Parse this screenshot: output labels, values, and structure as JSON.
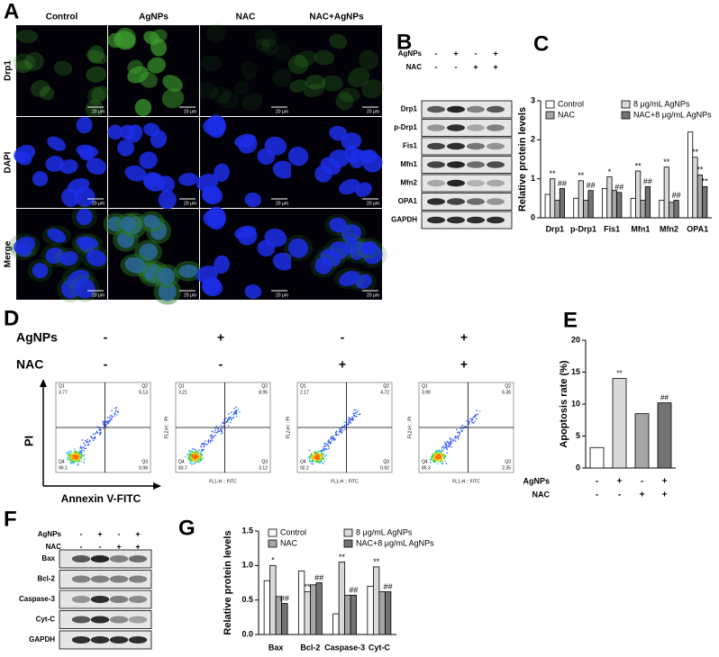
{
  "panel_a": {
    "label": "A",
    "columns": [
      "Control",
      "AgNPs",
      "NAC",
      "NAC+AgNPs"
    ],
    "rows": [
      "Drp1",
      "DAPI",
      "Merge"
    ],
    "scale_bar": "20 μm"
  },
  "panel_b": {
    "label": "B",
    "treatments": [
      {
        "name": "AgNPs",
        "signs": [
          "-",
          "+",
          "-",
          "+"
        ]
      },
      {
        "name": "NAC",
        "signs": [
          "-",
          "-",
          "+",
          "+"
        ]
      }
    ],
    "proteins": [
      "Drp1",
      "p-Drp1",
      "Fis1",
      "Mfn1",
      "Mfn2",
      "OPA1",
      "GAPDH"
    ]
  },
  "panel_d": {
    "label": "D",
    "treatments": [
      {
        "name": "AgNPs",
        "signs": [
          "-",
          "+",
          "-",
          "+"
        ]
      },
      {
        "name": "NAC",
        "signs": [
          "-",
          "-",
          "+",
          "+"
        ]
      }
    ],
    "y_label": "PI",
    "x_label": "Annexin V-FITC",
    "x_channel": "FL1-H :: FITC",
    "y_channel": "FL2-H :: PI",
    "plots": [
      {
        "quadrants": [
          {
            "name": "Q1",
            "value": 3.77
          },
          {
            "name": "Q2",
            "value": 5.13
          },
          {
            "name": "Q3",
            "value": 0.98
          },
          {
            "name": "Q4",
            "value": 90.1
          }
        ]
      },
      {
        "quadrants": [
          {
            "name": "Q1",
            "value": 3.21
          },
          {
            "name": "Q2",
            "value": 8.95
          },
          {
            "name": "Q3",
            "value": 3.12
          },
          {
            "name": "Q4",
            "value": 83.7
          }
        ]
      },
      {
        "quadrants": [
          {
            "name": "Q1",
            "value": 2.17
          },
          {
            "name": "Q2",
            "value": 4.72
          },
          {
            "name": "Q3",
            "value": 0.92
          },
          {
            "name": "Q4",
            "value": 92.2
          }
        ]
      },
      {
        "quadrants": [
          {
            "name": "Q1",
            "value": 3.99
          },
          {
            "name": "Q2",
            "value": 6.36
          },
          {
            "name": "Q3",
            "value": 2.35
          },
          {
            "name": "Q4",
            "value": 85.3
          }
        ]
      }
    ]
  },
  "panel_f": {
    "label": "F",
    "treatments": [
      {
        "name": "AgNPs",
        "signs": [
          "-",
          "+",
          "-",
          "+"
        ]
      },
      {
        "name": "NAC",
        "signs": [
          "-",
          "-",
          "+",
          "+"
        ]
      }
    ],
    "proteins": [
      "Bax",
      "Bcl-2",
      "Caspase-3",
      "Cyt-C",
      "GAPDH"
    ]
  },
  "chart_data": [
    {
      "type": "bar",
      "panel_label": "C",
      "y_label": "Relative protein levels",
      "categories": [
        "Drp1",
        "p-Drp1",
        "Fis1",
        "Mfn1",
        "Mfn2",
        "OPA1"
      ],
      "ylim": [
        0,
        3
      ],
      "yticks": [
        0,
        1,
        2,
        3
      ],
      "series": [
        {
          "name": "Control",
          "color": "#ffffff",
          "values": [
            0.6,
            0.5,
            0.75,
            0.5,
            0.45,
            2.2
          ],
          "significance": [
            null,
            null,
            null,
            null,
            null,
            null
          ]
        },
        {
          "name": "8 μg/mL AgNPs",
          "color": "#d9d9d9",
          "values": [
            1.0,
            0.95,
            1.05,
            1.2,
            1.3,
            1.55
          ],
          "significance": [
            "**",
            "**",
            "*",
            "**",
            "**",
            "**"
          ]
        },
        {
          "name": "NAC",
          "color": "#a6a6a6",
          "values": [
            0.45,
            0.45,
            0.7,
            0.45,
            0.4,
            1.1
          ],
          "significance": [
            null,
            null,
            null,
            null,
            null,
            "**"
          ]
        },
        {
          "name": "NAC+8 μg/mL AgNPs",
          "color": "#737373",
          "values": [
            0.75,
            0.7,
            0.65,
            0.8,
            0.45,
            0.8
          ],
          "significance": [
            "##",
            "##",
            "##",
            "##",
            "##",
            "**"
          ]
        }
      ]
    },
    {
      "type": "bar",
      "panel_label": "E",
      "y_label": "Apoptosis rate (%)",
      "values": [
        3.2,
        14.0,
        8.5,
        10.2
      ],
      "colors": [
        "#ffffff",
        "#d9d9d9",
        "#a6a6a6",
        "#737373"
      ],
      "significance": [
        null,
        "**",
        null,
        "##"
      ],
      "ylim": [
        0,
        20
      ],
      "yticks": [
        0,
        5,
        10,
        15,
        20
      ],
      "treatments": [
        {
          "name": "AgNPs",
          "signs": [
            "-",
            "+",
            "-",
            "+"
          ]
        },
        {
          "name": "NAC",
          "signs": [
            "-",
            "-",
            "+",
            "+"
          ]
        }
      ]
    },
    {
      "type": "bar",
      "panel_label": "G",
      "y_label": "Relative protein levels",
      "categories": [
        "Bax",
        "Bcl-2",
        "Caspase-3",
        "Cyt-C"
      ],
      "ylim": [
        0,
        1.5
      ],
      "yticks": [
        {
          "value": 0,
          "label": "0.0"
        },
        0.5,
        {
          "value": 1,
          "label": "1.0"
        },
        1.5
      ],
      "series": [
        {
          "name": "Control",
          "color": "#ffffff",
          "values": [
            0.78,
            0.92,
            0.3,
            0.7
          ],
          "significance": [
            null,
            null,
            null,
            null
          ]
        },
        {
          "name": "8 μg/mL AgNPs",
          "color": "#d9d9d9",
          "values": [
            1.0,
            0.62,
            1.05,
            0.98
          ],
          "significance": [
            "*",
            "**",
            "**",
            "**"
          ]
        },
        {
          "name": "NAC",
          "color": "#a6a6a6",
          "values": [
            0.55,
            0.72,
            0.57,
            0.62
          ],
          "significance": [
            null,
            null,
            null,
            null
          ]
        },
        {
          "name": "NAC+8 μg/mL AgNPs",
          "color": "#737373",
          "values": [
            0.45,
            0.75,
            0.57,
            0.62
          ],
          "significance": [
            "##",
            "##",
            "##",
            "##"
          ]
        }
      ]
    }
  ]
}
